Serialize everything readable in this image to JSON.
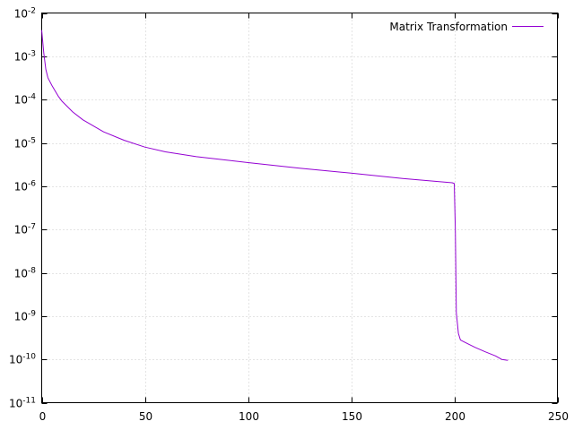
{
  "chart_data": {
    "type": "line",
    "title": "",
    "xlabel": "",
    "ylabel": "",
    "xlim": [
      0,
      250
    ],
    "ylim": [
      1e-11,
      0.01
    ],
    "yscale": "log",
    "grid": true,
    "legend_position": "top-right",
    "x_ticks": [
      0,
      50,
      100,
      150,
      200,
      250
    ],
    "x_tick_labels": [
      "0",
      "50",
      "100",
      "150",
      "200",
      "250"
    ],
    "y_ticks": [
      {
        "value": 1e-11,
        "base": "10",
        "exp": "-11"
      },
      {
        "value": 1e-10,
        "base": "10",
        "exp": "-10"
      },
      {
        "value": 1e-09,
        "base": "10",
        "exp": "-9"
      },
      {
        "value": 1e-08,
        "base": "10",
        "exp": "-8"
      },
      {
        "value": 1e-07,
        "base": "10",
        "exp": "-7"
      },
      {
        "value": 1e-06,
        "base": "10",
        "exp": "-6"
      },
      {
        "value": 1e-05,
        "base": "10",
        "exp": "-5"
      },
      {
        "value": 0.0001,
        "base": "10",
        "exp": "-4"
      },
      {
        "value": 0.001,
        "base": "10",
        "exp": "-3"
      },
      {
        "value": 0.01,
        "base": "10",
        "exp": "-2"
      }
    ],
    "series": [
      {
        "name": "Matrix Transformation",
        "color": "#9400d3",
        "x": [
          0,
          1,
          2,
          3,
          5,
          8,
          10,
          15,
          20,
          30,
          40,
          50,
          60,
          75,
          100,
          125,
          150,
          175,
          199,
          200,
          200.5,
          201,
          202,
          203,
          205,
          210,
          215,
          220,
          223,
          226
        ],
        "y": [
          0.004,
          0.0012,
          0.0005,
          0.00032,
          0.00021,
          0.00012,
          9e-05,
          5.2e-05,
          3.4e-05,
          1.8e-05,
          1.15e-05,
          8e-06,
          6.2e-06,
          4.8e-06,
          3.5e-06,
          2.6e-06,
          2e-06,
          1.5e-06,
          1.2e-06,
          1.15e-06,
          1e-07,
          1.2e-09,
          4e-10,
          2.8e-10,
          2.5e-10,
          1.9e-10,
          1.5e-10,
          1.2e-10,
          1e-10,
          9.5e-11
        ]
      }
    ]
  }
}
